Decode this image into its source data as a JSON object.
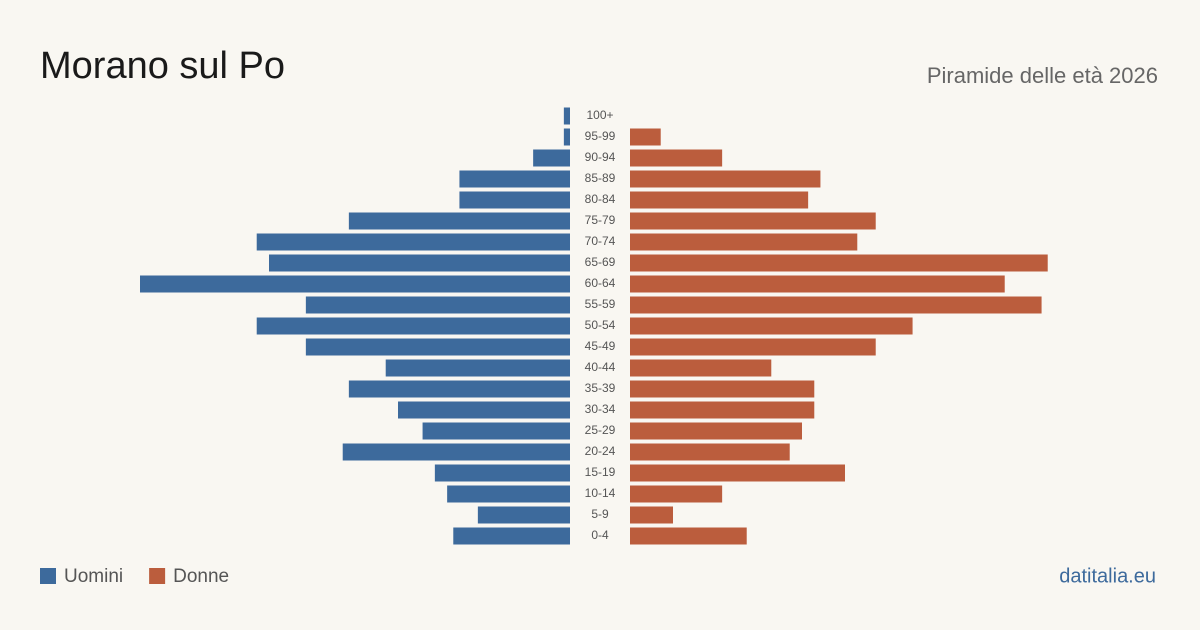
{
  "chart_data": {
    "type": "pyramid",
    "title": "Morano sul Po",
    "subtitle": "Piramide delle età 2026",
    "source": "datitalia.eu",
    "categories": [
      "100+",
      "95-99",
      "90-94",
      "85-89",
      "80-84",
      "75-79",
      "70-74",
      "65-69",
      "60-64",
      "55-59",
      "50-54",
      "45-49",
      "40-44",
      "35-39",
      "30-34",
      "25-29",
      "20-24",
      "15-19",
      "10-14",
      "5-9",
      "0-4"
    ],
    "series": [
      {
        "name": "Uomini",
        "color": "#3d6a9c",
        "values": [
          1,
          1,
          6,
          18,
          18,
          36,
          51,
          49,
          70,
          43,
          51,
          43,
          30,
          36,
          28,
          24,
          37,
          22,
          20,
          15,
          19
        ]
      },
      {
        "name": "Donne",
        "color": "#bb5d3d",
        "values": [
          0,
          5,
          15,
          31,
          29,
          40,
          37,
          68,
          61,
          67,
          46,
          40,
          23,
          30,
          30,
          28,
          26,
          35,
          15,
          7,
          19
        ]
      }
    ]
  }
}
